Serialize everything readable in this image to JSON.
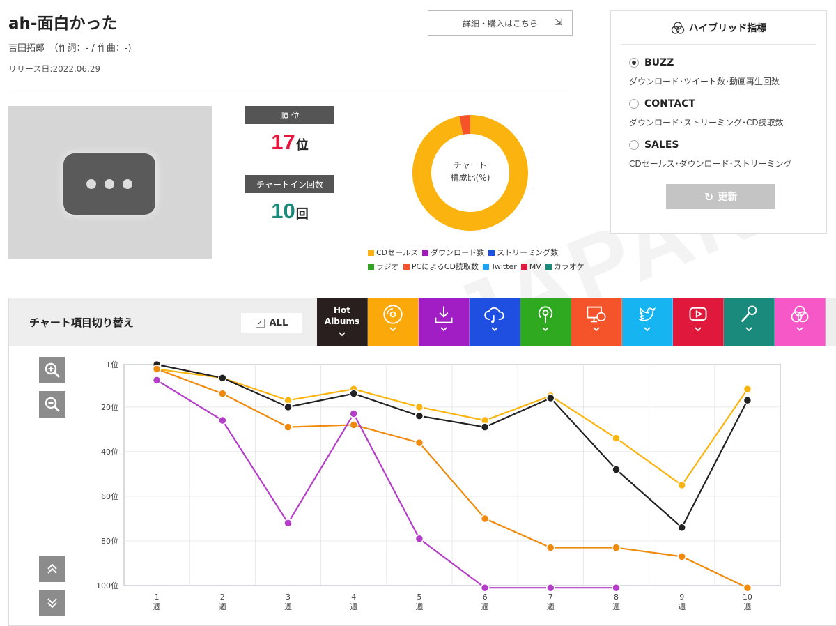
{
  "song": {
    "title": "ah-面白かった",
    "credits": "吉田拓郎　（作詞：- / 作曲：-)",
    "release": "リリース日:2022.06.29",
    "detail_button": "詳細・購入はこちら"
  },
  "stats": {
    "rank_header": "順 位",
    "rank_value": "17",
    "rank_unit": "位",
    "chartin_header": "チャートイン回数",
    "chartin_value": "10",
    "chartin_unit": "回",
    "rank_color": "#e8163c",
    "chartin_color": "#1a8a7c"
  },
  "composition": {
    "label_line1": "チャート",
    "label_line2": "構成比(%)",
    "segments": [
      {
        "name": "CDセールス",
        "value": 97,
        "color": "#fbb40f"
      },
      {
        "name": "PCによるCD読取数",
        "value": 3,
        "color": "#f5542a"
      }
    ],
    "legend": [
      {
        "name": "CDセールス",
        "color": "#fbb40f"
      },
      {
        "name": "ダウンロード数",
        "color": "#9b1fb3"
      },
      {
        "name": "ストリーミング数",
        "color": "#1e50e0"
      },
      {
        "name": "ラジオ",
        "color": "#2fa31f"
      },
      {
        "name": "PCによるCD読取数",
        "color": "#f5542a"
      },
      {
        "name": "Twitter",
        "color": "#1da1f2"
      },
      {
        "name": "MV",
        "color": "#e0183c"
      },
      {
        "name": "カラオケ",
        "color": "#1a8a7c"
      }
    ]
  },
  "hybrid": {
    "title": "ハイブリッド指標",
    "options": [
      {
        "label": "BUZZ",
        "desc": "ダウンロード･ツイート数･動画再生回数",
        "selected": true
      },
      {
        "label": "CONTACT",
        "desc": "ダウンロード･ストリーミング･CD読取数",
        "selected": false
      },
      {
        "label": "SALES",
        "desc": "CDセールス･ダウンロード･ストリーミング",
        "selected": false
      }
    ],
    "update_label": "更新"
  },
  "switcher": {
    "title": "チャート項目切り替え",
    "all_label": "ALL",
    "tabs": [
      {
        "name": "hot-albums",
        "label": "Hot Albums",
        "color": "#2a1f1f",
        "icon": "text"
      },
      {
        "name": "cd-sales",
        "label": "",
        "color": "#fba80a",
        "icon": "disc-icon"
      },
      {
        "name": "download",
        "label": "",
        "color": "#a11ec4",
        "icon": "download-icon"
      },
      {
        "name": "streaming",
        "label": "",
        "color": "#1e4fe0",
        "icon": "cloud-music-icon"
      },
      {
        "name": "radio",
        "label": "",
        "color": "#2faa20",
        "icon": "radio-icon"
      },
      {
        "name": "pc-cd-read",
        "label": "",
        "color": "#f5542a",
        "icon": "pc-disc-icon"
      },
      {
        "name": "twitter",
        "label": "",
        "color": "#16b4f0",
        "icon": "twitter-icon"
      },
      {
        "name": "mv",
        "label": "",
        "color": "#e0183c",
        "icon": "play-icon"
      },
      {
        "name": "karaoke",
        "label": "",
        "color": "#1a8a7c",
        "icon": "mic-icon"
      },
      {
        "name": "hybrid",
        "label": "",
        "color": "#f758c8",
        "icon": "hybrid-icon"
      }
    ]
  },
  "chart_data": {
    "type": "line",
    "x": [
      "1",
      "2",
      "3",
      "4",
      "5",
      "6",
      "7",
      "8",
      "9",
      "10"
    ],
    "x_unit": "週",
    "y_ticks": [
      "1位",
      "20位",
      "40位",
      "60位",
      "80位",
      "100位"
    ],
    "y_tick_values": [
      1,
      20,
      40,
      60,
      80,
      100
    ],
    "ylim": [
      1,
      100
    ],
    "y_inverted": true,
    "grid": true,
    "series": [
      {
        "color": "#fbb40f",
        "values": [
          3,
          7,
          17,
          12,
          20,
          26,
          15,
          34,
          55,
          12
        ]
      },
      {
        "color": "#222222",
        "values": [
          1,
          7,
          20,
          14,
          24,
          29,
          16,
          48,
          74,
          17
        ]
      },
      {
        "color": "#f08a0c",
        "values": [
          3,
          14,
          29,
          28,
          36,
          70,
          83,
          83,
          87,
          101
        ]
      },
      {
        "color": "#b43cc8",
        "values": [
          8,
          26,
          72,
          23,
          79,
          101,
          101,
          101,
          null,
          null
        ]
      }
    ]
  }
}
